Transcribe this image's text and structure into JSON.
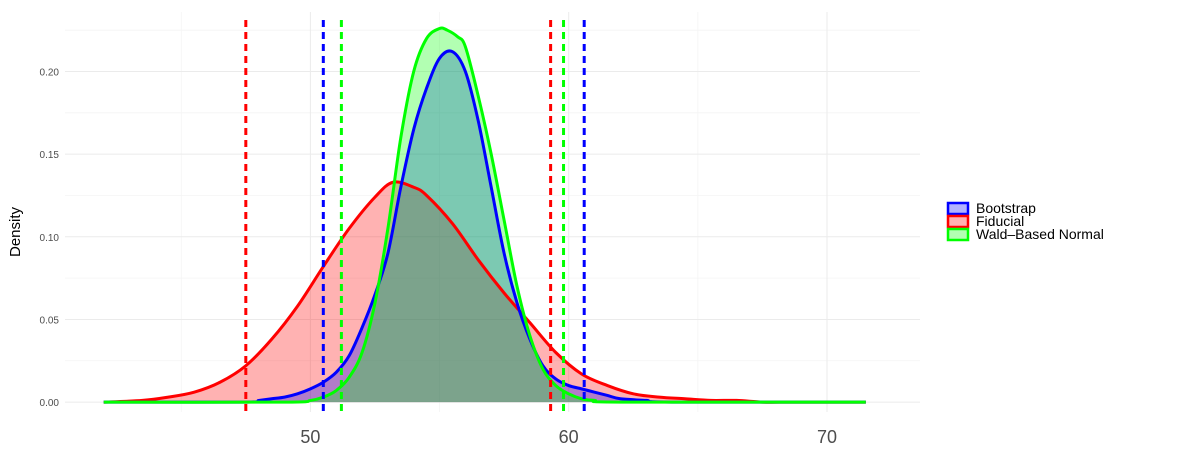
{
  "chart_data": {
    "type": "area",
    "title": "",
    "xlabel": "",
    "ylabel": "Density",
    "xlim": [
      40.5,
      73.6
    ],
    "ylim": [
      -0.006,
      0.236
    ],
    "x_ticks": [
      50,
      60,
      70
    ],
    "y_ticks": [
      0.0,
      0.05,
      0.1,
      0.15,
      0.2
    ],
    "y_tick_labels": [
      "0.00",
      "0.05",
      "0.10",
      "0.15",
      "0.20"
    ],
    "grid": true,
    "legend_position": "right",
    "series": [
      {
        "name": "Fiducial",
        "line_color": "#ff0000",
        "fill_color": "#ff0000",
        "fill_opacity": 0.3,
        "x": [
          42.0,
          43.5,
          44.5,
          45.5,
          46.5,
          47.5,
          48.5,
          49.5,
          50.5,
          51.5,
          52.5,
          53.2,
          54.0,
          54.5,
          55.5,
          56.5,
          57.5,
          58.5,
          59.5,
          60.5,
          61.5,
          62.5,
          63.5,
          64.5,
          65.5,
          66.5,
          67.5,
          68.5,
          69.5,
          70.5,
          71.5
        ],
        "y": [
          0.0,
          0.001,
          0.003,
          0.006,
          0.012,
          0.022,
          0.038,
          0.058,
          0.082,
          0.105,
          0.124,
          0.133,
          0.13,
          0.125,
          0.108,
          0.086,
          0.066,
          0.048,
          0.03,
          0.017,
          0.01,
          0.005,
          0.003,
          0.002,
          0.001,
          0.001,
          0.0,
          0.0,
          0.0,
          0.0,
          0.0
        ]
      },
      {
        "name": "Bootstrap",
        "line_color": "#0000ff",
        "fill_color": "#0000ff",
        "fill_opacity": 0.3,
        "x": [
          42.0,
          47.5,
          48.0,
          48.5,
          49.0,
          49.5,
          50.0,
          50.5,
          51.0,
          51.5,
          52.0,
          52.5,
          53.0,
          53.5,
          54.0,
          54.5,
          55.0,
          55.5,
          56.0,
          56.5,
          57.0,
          57.5,
          58.0,
          58.5,
          59.0,
          59.5,
          60.0,
          60.5,
          61.0,
          61.5,
          62.0,
          63.0,
          64.0,
          71.5
        ],
        "y": [
          0.0,
          0.0,
          0.001,
          0.002,
          0.003,
          0.005,
          0.008,
          0.012,
          0.018,
          0.028,
          0.045,
          0.065,
          0.09,
          0.13,
          0.165,
          0.19,
          0.208,
          0.212,
          0.2,
          0.17,
          0.13,
          0.09,
          0.06,
          0.038,
          0.022,
          0.014,
          0.01,
          0.008,
          0.006,
          0.004,
          0.002,
          0.001,
          0.0,
          0.0
        ]
      },
      {
        "name": "Wald–Based Normal",
        "line_color": "#00ff00",
        "fill_color": "#00ff00",
        "fill_opacity": 0.3,
        "x": [
          42.0,
          49.0,
          50.0,
          50.5,
          51.0,
          51.5,
          52.0,
          52.5,
          53.0,
          53.5,
          54.0,
          54.5,
          55.0,
          55.3,
          55.7,
          56.0,
          56.5,
          57.0,
          57.5,
          58.0,
          58.5,
          59.0,
          59.5,
          60.0,
          60.5,
          61.0,
          62.0,
          71.5
        ],
        "y": [
          0.0,
          0.0,
          0.001,
          0.003,
          0.007,
          0.015,
          0.03,
          0.06,
          0.105,
          0.16,
          0.2,
          0.22,
          0.226,
          0.225,
          0.221,
          0.215,
          0.185,
          0.15,
          0.11,
          0.07,
          0.04,
          0.02,
          0.01,
          0.005,
          0.002,
          0.001,
          0.0,
          0.0
        ]
      }
    ],
    "vlines": [
      {
        "series": "Fiducial",
        "x": 47.5,
        "color": "#ff0000"
      },
      {
        "series": "Fiducial",
        "x": 59.3,
        "color": "#ff0000"
      },
      {
        "series": "Bootstrap",
        "x": 50.5,
        "color": "#0000ff"
      },
      {
        "series": "Bootstrap",
        "x": 60.6,
        "color": "#0000ff"
      },
      {
        "series": "Wald–Based Normal",
        "x": 51.2,
        "color": "#00ff00"
      },
      {
        "series": "Wald–Based Normal",
        "x": 59.8,
        "color": "#00ff00"
      }
    ],
    "legend": [
      {
        "label": "Bootstrap",
        "color": "#0000ff"
      },
      {
        "label": "Fiducial",
        "color": "#ff0000"
      },
      {
        "label": "Wald–Based Normal",
        "color": "#00ff00"
      }
    ]
  }
}
